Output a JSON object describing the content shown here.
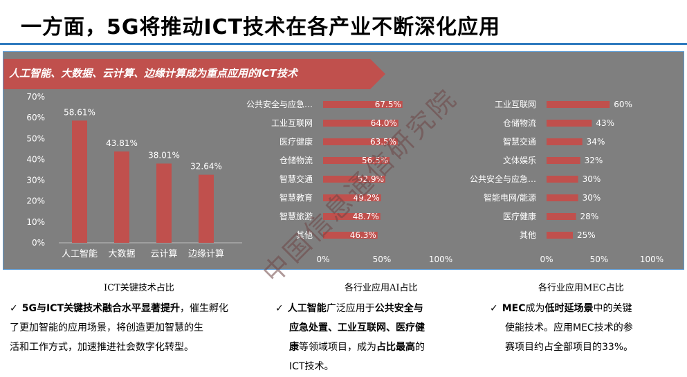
{
  "title": "一方面，5G将推动ICT技术在各产业不断深化应用",
  "banner": "人工智能、大数据、云计算、边缘计算成为重点应用的ICT技术",
  "watermark": "中国信息通信研究院",
  "colors": {
    "bar": "#c0504d",
    "panel": "#7f7f7f",
    "banner": "#c0504d",
    "rule": "#2f7bbf"
  },
  "chart_data": [
    {
      "type": "bar",
      "categories": [
        "人工智能",
        "大数据",
        "云计算",
        "边缘计算"
      ],
      "values": [
        58.61,
        43.81,
        38.01,
        32.64
      ],
      "data_labels": [
        "58.61%",
        "43.81%",
        "38.01%",
        "32.64%"
      ],
      "yticks": [
        "0%",
        "10%",
        "20%",
        "30%",
        "40%",
        "50%",
        "60%",
        "70%"
      ],
      "ylim": [
        0,
        70
      ],
      "caption": "ICT关键技术占比"
    },
    {
      "type": "bar",
      "orientation": "horizontal",
      "categories": [
        "公共安全与应急…",
        "工业互联网",
        "医疗健康",
        "仓储物流",
        "智慧交通",
        "智慧教育",
        "智慧旅游",
        "其他"
      ],
      "values": [
        67.5,
        64.0,
        63.5,
        56.5,
        52.9,
        49.2,
        48.7,
        46.3
      ],
      "data_labels": [
        "67.5%",
        "64.0%",
        "63.5%",
        "56.5%",
        "52.9%",
        "49.2%",
        "48.7%",
        "46.3%"
      ],
      "xticks": [
        "0%",
        "50%",
        "100%"
      ],
      "xlim": [
        0,
        100
      ],
      "caption": "各行业应用AI占比"
    },
    {
      "type": "bar",
      "orientation": "horizontal",
      "categories": [
        "工业互联网",
        "仓储物流",
        "智慧交通",
        "文体娱乐",
        "公共安全与应急…",
        "智能电网/能源",
        "医疗健康",
        "其他"
      ],
      "values": [
        60,
        43,
        34,
        32,
        30,
        30,
        28,
        25
      ],
      "data_labels": [
        "60%",
        "43%",
        "34%",
        "32%",
        "30%",
        "30%",
        "28%",
        "25%"
      ],
      "xticks": [
        "0%",
        "50%",
        "100%"
      ],
      "xlim": [
        0,
        100
      ],
      "caption": "各行业应用MEC占比"
    }
  ],
  "bullets": {
    "b1": {
      "check": "✓",
      "bold1": "5G与ICT关键技术融合水平显著提升",
      "text1": "，催生孵化",
      "line2": "了更加智能的应用场景，将创造更加智慧的生",
      "line3": "活和工作方式，加速推进社会数字化转型。"
    },
    "b2": {
      "check": "✓",
      "bold1": "人工智能",
      "text1": "广泛应用于",
      "bold2": "公共安全与",
      "bold3": "应急处置、工业互联网、医疗健",
      "bold4": "康",
      "text4": "等领域项目，成为",
      "bold5": "占比最高",
      "text5": "的",
      "line4": "ICT技术。"
    },
    "b3": {
      "check": "✓",
      "bold1": "MEC",
      "text1": "成为",
      "bold2": "低时延场景",
      "text2": "中的关键",
      "line2": "使能技术。应用MEC技术的参",
      "line3": "赛项目约占全部项目的33%。"
    }
  }
}
